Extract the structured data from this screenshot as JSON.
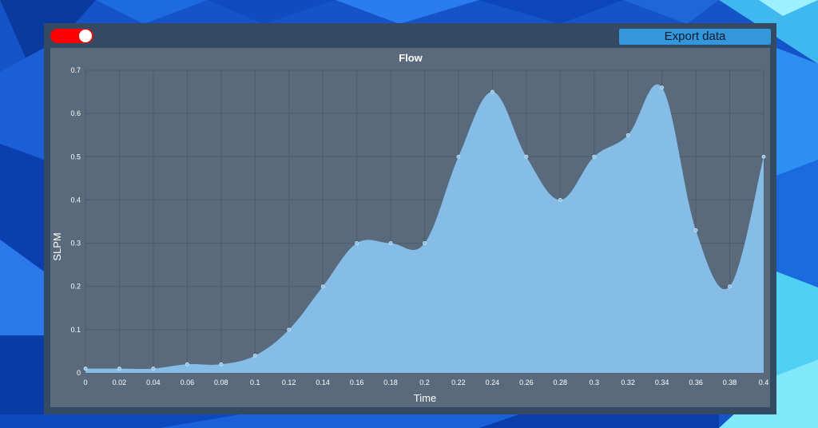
{
  "toolbar": {
    "toggle_color": "#ff0000",
    "export_label": "Export data",
    "export_color": "#3496db"
  },
  "chart_data": {
    "type": "area",
    "title": "Flow",
    "xlabel": "Time",
    "ylabel": "SLPM",
    "xlim": [
      0,
      0.4
    ],
    "ylim": [
      0,
      0.7
    ],
    "grid": true,
    "fill_color": "#85bde6",
    "x": [
      0,
      0.02,
      0.04,
      0.06,
      0.08,
      0.1,
      0.12,
      0.14,
      0.16,
      0.18,
      0.2,
      0.22,
      0.24,
      0.26,
      0.28,
      0.3,
      0.32,
      0.34,
      0.36,
      0.38,
      0.4
    ],
    "values": [
      0.01,
      0.01,
      0.01,
      0.02,
      0.02,
      0.04,
      0.1,
      0.2,
      0.3,
      0.3,
      0.3,
      0.5,
      0.65,
      0.5,
      0.4,
      0.5,
      0.55,
      0.66,
      0.33,
      0.2,
      0.5
    ],
    "x_ticks": [
      "0",
      "0.02",
      "0.04",
      "0.06",
      "0.08",
      "0.1",
      "0.12",
      "0.14",
      "0.16",
      "0.18",
      "0.2",
      "0.22",
      "0.24",
      "0.26",
      "0.28",
      "0.3",
      "0.32",
      "0.34",
      "0.36",
      "0.38",
      "0.4"
    ],
    "y_ticks": [
      "0",
      "0.1",
      "0.2",
      "0.3",
      "0.4",
      "0.5",
      "0.6",
      "0.7"
    ]
  }
}
